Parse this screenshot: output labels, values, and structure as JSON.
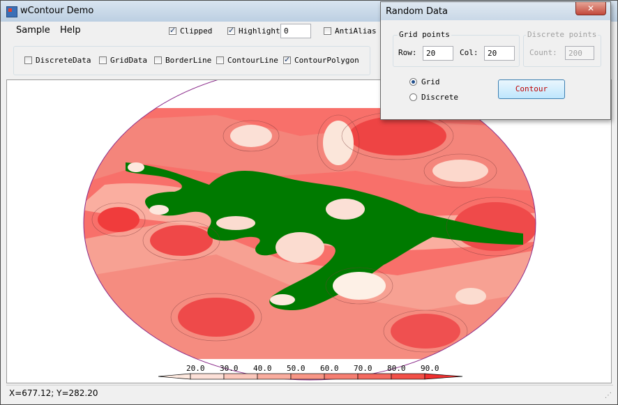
{
  "window": {
    "title": "wContour Demo"
  },
  "menu": {
    "items": [
      "Sample",
      "Help"
    ]
  },
  "toolbar": {
    "clipped": {
      "label": "Clipped",
      "checked": true
    },
    "highlight": {
      "label": "Highlight",
      "checked": true,
      "value": "0"
    },
    "antialias": {
      "label": "AntiAlias",
      "checked": false
    },
    "layers": [
      {
        "label": "DiscreteData",
        "checked": false
      },
      {
        "label": "GridData",
        "checked": false
      },
      {
        "label": "BorderLine",
        "checked": false
      },
      {
        "label": "ContourLine",
        "checked": false
      },
      {
        "label": "ContourPolygon",
        "checked": true
      }
    ]
  },
  "legend": {
    "ticks": [
      "20.0",
      "30.0",
      "40.0",
      "50.0",
      "60.0",
      "70.0",
      "80.0",
      "90.0"
    ]
  },
  "status": {
    "text": "X=677.12; Y=282.20"
  },
  "dialog": {
    "title": "Random Data",
    "close_label": "✕",
    "grid_group": {
      "label": "Grid points",
      "row_label": "Row:",
      "row_value": "20",
      "col_label": "Col:",
      "col_value": "20"
    },
    "discrete_group": {
      "label": "Discrete points",
      "count_label": "Count:",
      "count_value": "200"
    },
    "grid_radio": {
      "label": "Grid",
      "checked": true
    },
    "discrete_radio": {
      "label": "Discrete",
      "checked": false
    },
    "contour_button": "Contour"
  },
  "colors": {
    "green_band": "#007a00",
    "deep_red": "#f23a3a",
    "light_pink": "#fce0d8",
    "border": "#8a2a8a"
  }
}
